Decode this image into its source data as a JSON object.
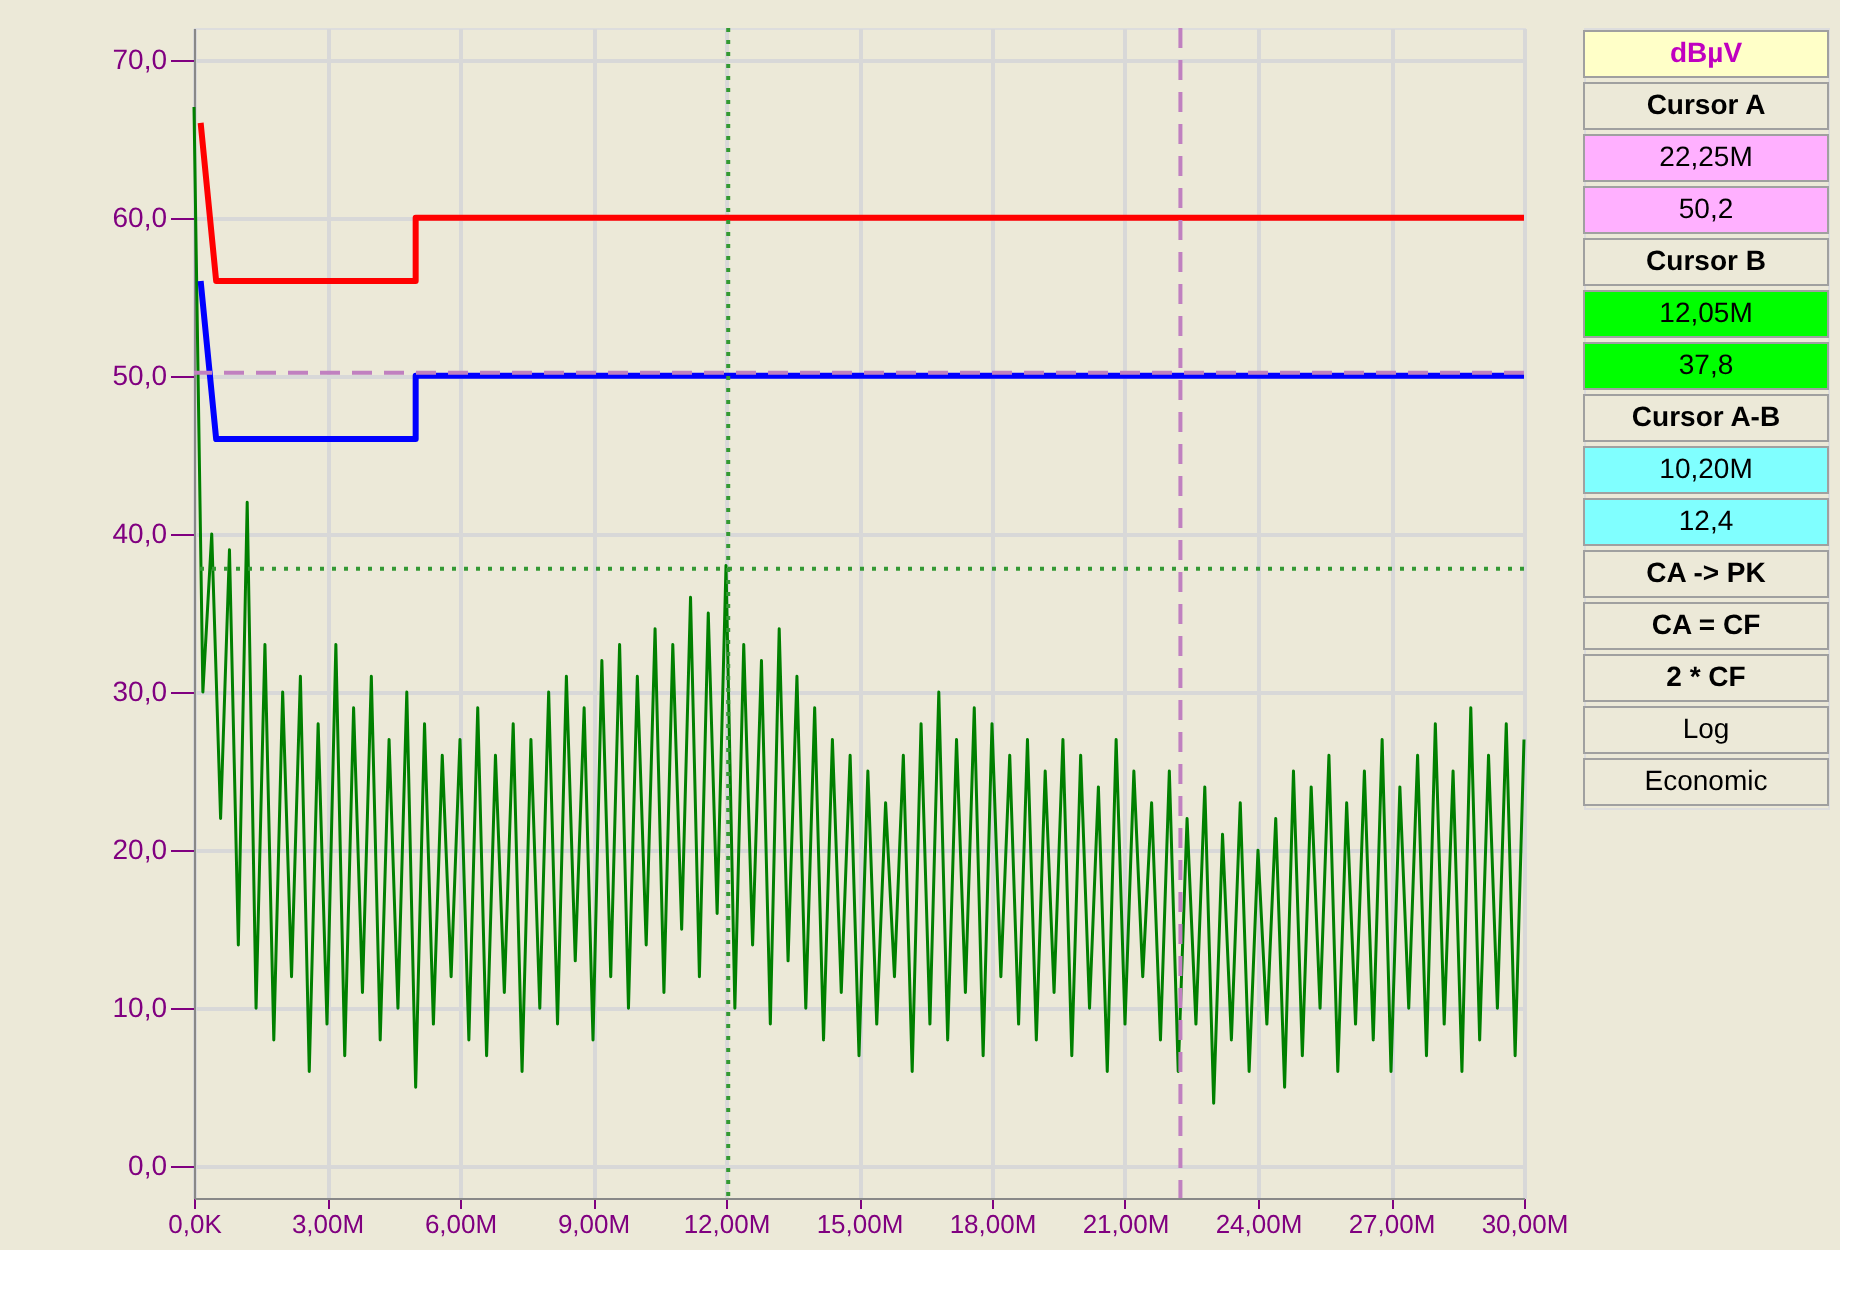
{
  "chart_data": {
    "type": "line",
    "xlim": [
      0,
      30
    ],
    "ylim": [
      -2,
      72
    ],
    "xticks": [
      {
        "value": 0,
        "label": "0,0K"
      },
      {
        "value": 3,
        "label": "3,00M"
      },
      {
        "value": 6,
        "label": "6,00M"
      },
      {
        "value": 9,
        "label": "9,00M"
      },
      {
        "value": 12,
        "label": "12,00M"
      },
      {
        "value": 15,
        "label": "15,00M"
      },
      {
        "value": 18,
        "label": "18,00M"
      },
      {
        "value": 21,
        "label": "21,00M"
      },
      {
        "value": 24,
        "label": "24,00M"
      },
      {
        "value": 27,
        "label": "27,00M"
      },
      {
        "value": 30,
        "label": "30,00M"
      }
    ],
    "yticks": [
      {
        "value": 0,
        "label": "0,0"
      },
      {
        "value": 10,
        "label": "10,0"
      },
      {
        "value": 20,
        "label": "20,0"
      },
      {
        "value": 30,
        "label": "30,0"
      },
      {
        "value": 40,
        "label": "40,0"
      },
      {
        "value": 50,
        "label": "50,0"
      },
      {
        "value": 60,
        "label": "60,0"
      },
      {
        "value": 70,
        "label": "70,0"
      }
    ],
    "grid": true,
    "legend": false,
    "marker": "none",
    "line_style": "solid",
    "series": [
      {
        "color": "#008000",
        "x": [
          0,
          0.2,
          0.4,
          0.6,
          0.8,
          1.0,
          1.2,
          1.4,
          1.6,
          1.8,
          2.0,
          2.2,
          2.4,
          2.6,
          2.8,
          3.0,
          3.2,
          3.4,
          3.6,
          3.8,
          4.0,
          4.2,
          4.4,
          4.6,
          4.8,
          5.0,
          5.2,
          5.4,
          5.6,
          5.8,
          6.0,
          6.2,
          6.4,
          6.6,
          6.8,
          7.0,
          7.2,
          7.4,
          7.6,
          7.8,
          8.0,
          8.2,
          8.4,
          8.6,
          8.8,
          9.0,
          9.2,
          9.4,
          9.6,
          9.8,
          10.0,
          10.2,
          10.4,
          10.6,
          10.8,
          11.0,
          11.2,
          11.4,
          11.6,
          11.8,
          12.0,
          12.2,
          12.4,
          12.6,
          12.8,
          13.0,
          13.2,
          13.4,
          13.6,
          13.8,
          14.0,
          14.2,
          14.4,
          14.6,
          14.8,
          15.0,
          15.2,
          15.4,
          15.6,
          15.8,
          16.0,
          16.2,
          16.4,
          16.6,
          16.8,
          17.0,
          17.2,
          17.4,
          17.6,
          17.8,
          18.0,
          18.2,
          18.4,
          18.6,
          18.8,
          19.0,
          19.2,
          19.4,
          19.6,
          19.8,
          20.0,
          20.2,
          20.4,
          20.6,
          20.8,
          21.0,
          21.2,
          21.4,
          21.6,
          21.8,
          22.0,
          22.2,
          22.4,
          22.6,
          22.8,
          23.0,
          23.2,
          23.4,
          23.6,
          23.8,
          24.0,
          24.2,
          24.4,
          24.6,
          24.8,
          25.0,
          25.2,
          25.4,
          25.6,
          25.8,
          26.0,
          26.2,
          26.4,
          26.6,
          26.8,
          27.0,
          27.2,
          27.4,
          27.6,
          27.8,
          28.0,
          28.2,
          28.4,
          28.6,
          28.8,
          29.0,
          29.2,
          29.4,
          29.6,
          29.8,
          30.0
        ],
        "values": [
          67,
          30,
          40,
          22,
          39,
          14,
          42,
          10,
          33,
          8,
          30,
          12,
          31,
          6,
          28,
          9,
          33,
          7,
          29,
          11,
          31,
          8,
          27,
          10,
          30,
          5,
          28,
          9,
          26,
          12,
          27,
          8,
          29,
          7,
          26,
          11,
          28,
          6,
          27,
          10,
          30,
          9,
          31,
          13,
          29,
          8,
          32,
          12,
          33,
          10,
          31,
          14,
          34,
          11,
          33,
          15,
          36,
          12,
          35,
          16,
          38,
          10,
          33,
          14,
          32,
          9,
          34,
          13,
          31,
          10,
          29,
          8,
          27,
          11,
          26,
          7,
          25,
          9,
          23,
          12,
          26,
          6,
          28,
          9,
          30,
          8,
          27,
          11,
          29,
          7,
          28,
          12,
          26,
          9,
          27,
          8,
          25,
          11,
          27,
          7,
          26,
          10,
          24,
          6,
          27,
          9,
          25,
          12,
          23,
          8,
          25,
          6,
          22,
          9,
          24,
          4,
          21,
          8,
          23,
          6,
          20,
          9,
          22,
          5,
          25,
          7,
          24,
          10,
          26,
          6,
          23,
          9,
          25,
          8,
          27,
          6,
          24,
          10,
          26,
          7,
          28,
          9,
          25,
          6,
          29,
          8,
          26,
          10,
          28,
          7,
          27
        ]
      },
      {
        "color": "#ff0000",
        "x": [
          0.15,
          0.5,
          5,
          5,
          30
        ],
        "values": [
          66,
          56,
          56,
          60,
          60
        ]
      },
      {
        "color": "#0000ff",
        "x": [
          0.15,
          0.5,
          5,
          5,
          30
        ],
        "values": [
          56,
          46,
          46,
          50,
          50
        ]
      }
    ],
    "ref_lines": [
      {
        "axis": "y",
        "value": 50.2,
        "color": "#c080c0",
        "line_style": "dashed"
      },
      {
        "axis": "x",
        "value": 22.25,
        "color": "#c080c0",
        "line_style": "dashed"
      },
      {
        "axis": "y",
        "value": 37.8,
        "color": "#339933",
        "line_style": "dotted"
      },
      {
        "axis": "x",
        "value": 12.05,
        "color": "#339933",
        "line_style": "dotted"
      }
    ],
    "annotations": [
      "dBµV",
      "Cursor A",
      "22,25M",
      "50,2",
      "Cursor B",
      "12,05M",
      "37,8",
      "Cursor A-B",
      "10,20M",
      "12,4",
      "CA -> PK",
      "CA = CF",
      "2 * CF",
      "Log",
      "Economic"
    ]
  }
}
